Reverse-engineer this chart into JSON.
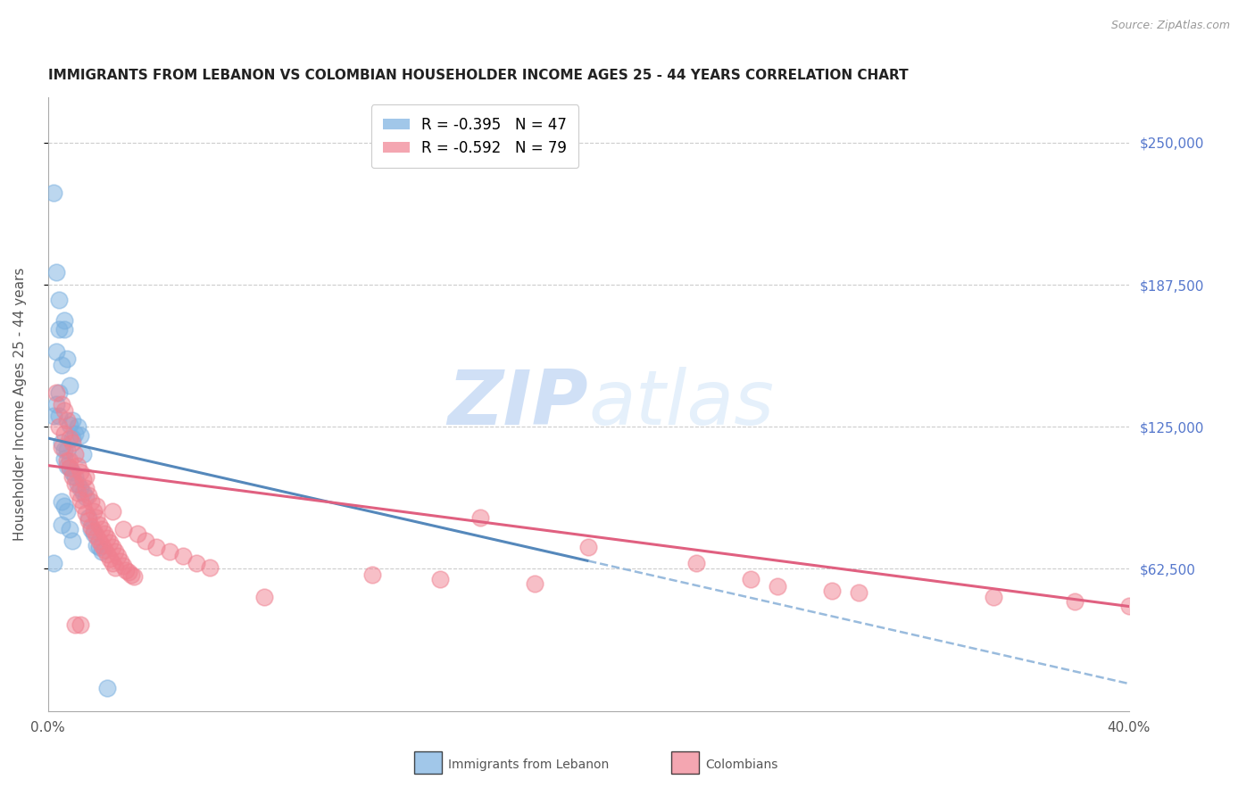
{
  "title": "IMMIGRANTS FROM LEBANON VS COLOMBIAN HOUSEHOLDER INCOME AGES 25 - 44 YEARS CORRELATION CHART",
  "source": "Source: ZipAtlas.com",
  "ylabel": "Householder Income Ages 25 - 44 years",
  "ytick_labels": [
    "$62,500",
    "$125,000",
    "$187,500",
    "$250,000"
  ],
  "ytick_values": [
    62500,
    125000,
    187500,
    250000
  ],
  "ylim": [
    0,
    270000
  ],
  "xlim": [
    0.0,
    0.4
  ],
  "watermark_zip": "ZIP",
  "watermark_atlas": "atlas",
  "legend": {
    "lebanon": {
      "R": "-0.395",
      "N": "47",
      "color": "#7ab0e0"
    },
    "colombian": {
      "R": "-0.592",
      "N": "79",
      "color": "#f08090"
    }
  },
  "lebanon_scatter": [
    [
      0.002,
      228000
    ],
    [
      0.003,
      193000
    ],
    [
      0.004,
      181000
    ],
    [
      0.006,
      172000
    ],
    [
      0.006,
      168000
    ],
    [
      0.004,
      168000
    ],
    [
      0.003,
      158000
    ],
    [
      0.007,
      155000
    ],
    [
      0.005,
      152000
    ],
    [
      0.008,
      143000
    ],
    [
      0.004,
      140000
    ],
    [
      0.003,
      135000
    ],
    [
      0.004,
      130000
    ],
    [
      0.002,
      130000
    ],
    [
      0.009,
      128000
    ],
    [
      0.008,
      126000
    ],
    [
      0.011,
      125000
    ],
    [
      0.01,
      122000
    ],
    [
      0.012,
      121000
    ],
    [
      0.009,
      120000
    ],
    [
      0.005,
      118000
    ],
    [
      0.006,
      115000
    ],
    [
      0.007,
      115000
    ],
    [
      0.013,
      113000
    ],
    [
      0.006,
      111000
    ],
    [
      0.007,
      108000
    ],
    [
      0.008,
      107000
    ],
    [
      0.009,
      105000
    ],
    [
      0.01,
      103000
    ],
    [
      0.011,
      100000
    ],
    [
      0.012,
      98000
    ],
    [
      0.013,
      96000
    ],
    [
      0.014,
      94000
    ],
    [
      0.005,
      92000
    ],
    [
      0.006,
      90000
    ],
    [
      0.007,
      88000
    ],
    [
      0.015,
      85000
    ],
    [
      0.005,
      82000
    ],
    [
      0.016,
      80000
    ],
    [
      0.008,
      80000
    ],
    [
      0.017,
      78000
    ],
    [
      0.009,
      75000
    ],
    [
      0.018,
      73000
    ],
    [
      0.019,
      72000
    ],
    [
      0.02,
      70000
    ],
    [
      0.002,
      65000
    ],
    [
      0.022,
      10000
    ]
  ],
  "colombian_scatter": [
    [
      0.003,
      140000
    ],
    [
      0.005,
      135000
    ],
    [
      0.006,
      132000
    ],
    [
      0.007,
      128000
    ],
    [
      0.004,
      125000
    ],
    [
      0.006,
      122000
    ],
    [
      0.008,
      120000
    ],
    [
      0.009,
      118000
    ],
    [
      0.005,
      116000
    ],
    [
      0.01,
      113000
    ],
    [
      0.007,
      110000
    ],
    [
      0.011,
      108000
    ],
    [
      0.008,
      107000
    ],
    [
      0.012,
      105000
    ],
    [
      0.009,
      103000
    ],
    [
      0.013,
      102000
    ],
    [
      0.01,
      100000
    ],
    [
      0.014,
      98000
    ],
    [
      0.011,
      96000
    ],
    [
      0.015,
      95000
    ],
    [
      0.012,
      93000
    ],
    [
      0.016,
      92000
    ],
    [
      0.013,
      90000
    ],
    [
      0.017,
      88000
    ],
    [
      0.014,
      87000
    ],
    [
      0.018,
      85000
    ],
    [
      0.015,
      84000
    ],
    [
      0.019,
      82000
    ],
    [
      0.016,
      81000
    ],
    [
      0.02,
      80000
    ],
    [
      0.017,
      79000
    ],
    [
      0.021,
      78000
    ],
    [
      0.018,
      77000
    ],
    [
      0.022,
      76000
    ],
    [
      0.019,
      75000
    ],
    [
      0.023,
      74000
    ],
    [
      0.02,
      73000
    ],
    [
      0.024,
      72000
    ],
    [
      0.021,
      71000
    ],
    [
      0.025,
      70000
    ],
    [
      0.022,
      69000
    ],
    [
      0.026,
      68000
    ],
    [
      0.023,
      67000
    ],
    [
      0.027,
      66000
    ],
    [
      0.024,
      65000
    ],
    [
      0.028,
      64000
    ],
    [
      0.025,
      63000
    ],
    [
      0.029,
      62000
    ],
    [
      0.03,
      61000
    ],
    [
      0.031,
      60000
    ],
    [
      0.032,
      59000
    ],
    [
      0.008,
      110000
    ],
    [
      0.014,
      103000
    ],
    [
      0.018,
      90000
    ],
    [
      0.024,
      88000
    ],
    [
      0.028,
      80000
    ],
    [
      0.033,
      78000
    ],
    [
      0.036,
      75000
    ],
    [
      0.04,
      72000
    ],
    [
      0.045,
      70000
    ],
    [
      0.05,
      68000
    ],
    [
      0.055,
      65000
    ],
    [
      0.06,
      63000
    ],
    [
      0.16,
      85000
    ],
    [
      0.2,
      72000
    ],
    [
      0.24,
      65000
    ],
    [
      0.26,
      58000
    ],
    [
      0.27,
      55000
    ],
    [
      0.29,
      53000
    ],
    [
      0.3,
      52000
    ],
    [
      0.01,
      38000
    ],
    [
      0.012,
      38000
    ],
    [
      0.08,
      50000
    ],
    [
      0.12,
      60000
    ],
    [
      0.145,
      58000
    ],
    [
      0.18,
      56000
    ],
    [
      0.35,
      50000
    ],
    [
      0.38,
      48000
    ],
    [
      0.4,
      46000
    ]
  ],
  "lebanon_line_solid": {
    "x": [
      0.0,
      0.2
    ],
    "y": [
      120000,
      66000
    ]
  },
  "lebanon_line_dashed": {
    "x": [
      0.2,
      0.4
    ],
    "y": [
      66000,
      12000
    ]
  },
  "colombian_line": {
    "x": [
      0.0,
      0.4
    ],
    "y": [
      108000,
      46000
    ]
  },
  "title_fontsize": 11,
  "source_fontsize": 9,
  "ylabel_fontsize": 11,
  "tick_fontsize": 11,
  "background_color": "#ffffff",
  "grid_color": "#cccccc",
  "right_tick_color": "#5577cc",
  "scatter_size": 180
}
